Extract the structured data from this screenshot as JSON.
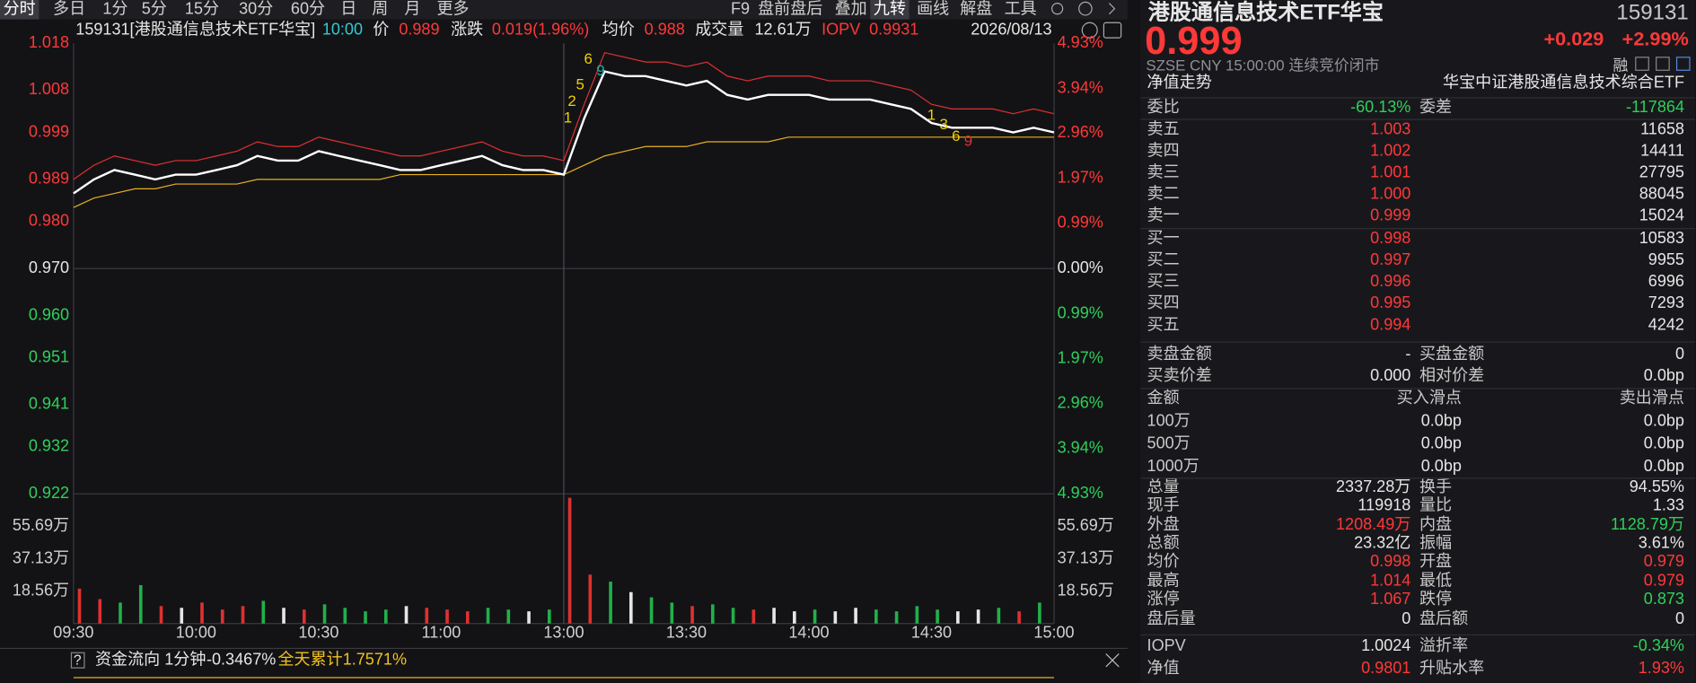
{
  "toolbar": {
    "left": [
      "分时",
      "多日",
      "1分",
      "5分",
      "15分",
      "30分",
      "60分",
      "日",
      "周",
      "月",
      "更多"
    ],
    "right": [
      "F9",
      "盘前盘后",
      "叠加",
      "九转",
      "画线",
      "解盘",
      "工具"
    ]
  },
  "header": {
    "name": "159131[港股通信息技术ETF华宝]",
    "time": "10:00",
    "price_label": "价",
    "price": "0.989",
    "change_label": "涨跌",
    "change": "0.019(1.96%)",
    "avg_label": "均价",
    "avg": "0.988",
    "vol_label": "成交量",
    "vol": "12.61万",
    "iopv_label": "IOPV",
    "iopv": "0.9931",
    "date": "2026/08/13"
  },
  "chart_data": [
    {
      "type": "line",
      "x": [
        0,
        5,
        10,
        15,
        20,
        25,
        30,
        35,
        40,
        45,
        50,
        55,
        60,
        65,
        70,
        75,
        80,
        85,
        90,
        95,
        100,
        105,
        110,
        115,
        120,
        125,
        130,
        135,
        140,
        145,
        150,
        155,
        160,
        165,
        170,
        175,
        180,
        185,
        190,
        195,
        200,
        205,
        210,
        215,
        220,
        225,
        230,
        235,
        240
      ],
      "xlim": [
        0,
        240
      ],
      "xticks": [
        {
          "value": 0,
          "label": "09:30"
        },
        {
          "value": 30,
          "label": "10:00"
        },
        {
          "value": 60,
          "label": "10:30"
        },
        {
          "value": 90,
          "label": "11:00"
        },
        {
          "value": 120,
          "label": "13:00"
        },
        {
          "value": 150,
          "label": "13:30"
        },
        {
          "value": 180,
          "label": "14:00"
        },
        {
          "value": 210,
          "label": "14:30"
        },
        {
          "value": 240,
          "label": "15:00"
        }
      ],
      "ylim": [
        0.922,
        1.018
      ],
      "yticks": [
        {
          "value": 1.018,
          "label": "1.018"
        },
        {
          "value": 1.008,
          "label": "1.008"
        },
        {
          "value": 0.999,
          "label": "0.999"
        },
        {
          "value": 0.989,
          "label": "0.989"
        },
        {
          "value": 0.98,
          "label": "0.980"
        },
        {
          "value": 0.97,
          "label": "0.970"
        },
        {
          "value": 0.96,
          "label": "0.960"
        },
        {
          "value": 0.951,
          "label": "0.951"
        },
        {
          "value": 0.941,
          "label": "0.941"
        },
        {
          "value": 0.932,
          "label": "0.932"
        },
        {
          "value": 0.922,
          "label": "0.922"
        }
      ],
      "y2lim": [
        -4.93,
        4.93
      ],
      "y2ticks": [
        {
          "value": 4.93,
          "label": "4.93%"
        },
        {
          "value": 3.94,
          "label": "3.94%"
        },
        {
          "value": 2.96,
          "label": "2.96%"
        },
        {
          "value": 1.97,
          "label": "1.97%"
        },
        {
          "value": 0.99,
          "label": "0.99%"
        },
        {
          "value": 0,
          "label": "0.00%"
        },
        {
          "value": -0.99,
          "label": "0.99%"
        },
        {
          "value": -1.97,
          "label": "1.97%"
        },
        {
          "value": -2.96,
          "label": "2.96%"
        },
        {
          "value": -3.94,
          "label": "3.94%"
        },
        {
          "value": -4.93,
          "label": "4.93%"
        }
      ],
      "series": [
        {
          "color": "#e03030",
          "values": [
            0.989,
            0.992,
            0.994,
            0.993,
            0.992,
            0.993,
            0.993,
            0.994,
            0.995,
            0.997,
            0.996,
            0.996,
            0.998,
            0.997,
            0.996,
            0.995,
            0.994,
            0.994,
            0.995,
            0.996,
            0.997,
            0.995,
            0.994,
            0.994,
            0.993,
            1.005,
            1.016,
            1.015,
            1.014,
            1.014,
            1.013,
            1.014,
            1.011,
            1.01,
            1.011,
            1.011,
            1.011,
            1.01,
            1.01,
            1.01,
            1.009,
            1.008,
            1.005,
            1.004,
            1.004,
            1.004,
            1.003,
            1.004,
            1.003
          ]
        },
        {
          "color": "#e8b020",
          "values": [
            0.983,
            0.985,
            0.986,
            0.987,
            0.987,
            0.988,
            0.988,
            0.988,
            0.988,
            0.989,
            0.989,
            0.989,
            0.989,
            0.989,
            0.989,
            0.989,
            0.99,
            0.99,
            0.99,
            0.99,
            0.99,
            0.99,
            0.99,
            0.99,
            0.99,
            0.992,
            0.994,
            0.995,
            0.996,
            0.996,
            0.996,
            0.997,
            0.997,
            0.997,
            0.997,
            0.998,
            0.998,
            0.998,
            0.998,
            0.998,
            0.998,
            0.998,
            0.998,
            0.998,
            0.998,
            0.998,
            0.998,
            0.998,
            0.998
          ]
        },
        {
          "color": "#ffffff",
          "values": [
            0.986,
            0.989,
            0.991,
            0.99,
            0.989,
            0.99,
            0.99,
            0.991,
            0.992,
            0.994,
            0.993,
            0.993,
            0.995,
            0.994,
            0.993,
            0.992,
            0.991,
            0.991,
            0.992,
            0.993,
            0.994,
            0.992,
            0.991,
            0.991,
            0.99,
            1.002,
            1.012,
            1.011,
            1.011,
            1.01,
            1.009,
            1.01,
            1.007,
            1.006,
            1.007,
            1.007,
            1.007,
            1.006,
            1.006,
            1.006,
            1.005,
            1.004,
            1.001,
            1.0,
            1.0,
            1.0,
            0.999,
            1.0,
            0.999
          ]
        }
      ],
      "annotations": [
        {
          "text": "1",
          "x": 121,
          "y": 1.002,
          "color": "#f0d000"
        },
        {
          "text": "2",
          "x": 122,
          "y": 1.0055,
          "color": "#f0d000"
        },
        {
          "text": "5",
          "x": 124,
          "y": 1.009,
          "color": "#f0d000"
        },
        {
          "text": "6",
          "x": 126,
          "y": 1.0145,
          "color": "#f0d000"
        },
        {
          "text": "9",
          "x": 129,
          "y": 1.012,
          "color": "#20b0a0"
        },
        {
          "text": "1",
          "x": 210,
          "y": 1.0025,
          "color": "#f0d000"
        },
        {
          "text": "3",
          "x": 213,
          "y": 1.0005,
          "color": "#f0d000"
        },
        {
          "text": "6",
          "x": 216,
          "y": 0.998,
          "color": "#f0d000"
        },
        {
          "text": "9",
          "x": 219,
          "y": 0.997,
          "color": "#e03030"
        }
      ]
    },
    {
      "type": "bar",
      "x": [
        0,
        5,
        10,
        15,
        20,
        25,
        30,
        35,
        40,
        45,
        50,
        55,
        60,
        65,
        70,
        75,
        80,
        85,
        90,
        95,
        100,
        105,
        110,
        115,
        120,
        125,
        130,
        135,
        140,
        145,
        150,
        155,
        160,
        165,
        170,
        175,
        180,
        185,
        190,
        195,
        200,
        205,
        210,
        215,
        220,
        225,
        230,
        235
      ],
      "values": [
        20,
        14,
        12,
        22,
        10,
        9,
        12,
        8,
        10,
        13,
        9,
        8,
        11,
        9,
        7,
        8,
        10,
        9,
        8,
        7,
        9,
        8,
        7,
        8,
        72,
        28,
        24,
        18,
        15,
        12,
        10,
        11,
        9,
        8,
        9,
        7,
        8,
        7,
        9,
        8,
        7,
        10,
        8,
        7,
        8,
        9,
        7,
        12
      ],
      "ylim": [
        0,
        74.24
      ],
      "yticks": [
        {
          "value": 18.56,
          "label": "18.56万"
        },
        {
          "value": 37.13,
          "label": "37.13万"
        },
        {
          "value": 55.69,
          "label": "55.69万"
        }
      ]
    }
  ],
  "panel": {
    "title": "港股通信息技术ETF华宝",
    "code": "159131",
    "price": "0.999",
    "change": "+0.029",
    "change_pct": "+2.99%",
    "status": "SZSE  CNY  15:00:00  连续竞价闭市",
    "rong": "融",
    "nav_label": "净值走势",
    "index_name": "华宝中证港股通信息技术综合ETF",
    "rows": [
      [
        "委比",
        "-60.13%",
        "委差",
        "-117864"
      ],
      [
        "卖五",
        "1.003",
        "11658"
      ],
      [
        "卖四",
        "1.002",
        "14411"
      ],
      [
        "卖三",
        "1.001",
        "27795"
      ],
      [
        "卖二",
        "1.000",
        "88045"
      ],
      [
        "卖一",
        "0.999",
        "15024"
      ],
      [
        "买一",
        "0.998",
        "10583"
      ],
      [
        "买二",
        "0.997",
        "9955"
      ],
      [
        "买三",
        "0.996",
        "6996"
      ],
      [
        "买四",
        "0.995",
        "7293"
      ],
      [
        "买五",
        "0.994",
        "4242"
      ],
      [
        "卖盘金额",
        "-",
        "买盘金额",
        "0"
      ],
      [
        "买卖价差",
        "0.000",
        "相对价差",
        "0.0bp"
      ],
      [
        "金额",
        "买入滑点",
        "卖出滑点"
      ],
      [
        "100万",
        "0.0bp",
        "0.0bp"
      ],
      [
        "500万",
        "0.0bp",
        "0.0bp"
      ],
      [
        "1000万",
        "0.0bp",
        "0.0bp"
      ],
      [
        "总量",
        "2337.28万",
        "换手",
        "94.55%"
      ],
      [
        "现手",
        "119918",
        "量比",
        "1.33"
      ],
      [
        "外盘",
        "1208.49万",
        "内盘",
        "1128.79万"
      ],
      [
        "总额",
        "23.32亿",
        "振幅",
        "3.61%"
      ],
      [
        "均价",
        "0.998",
        "开盘",
        "0.979"
      ],
      [
        "最高",
        "1.014",
        "最低",
        "0.979"
      ],
      [
        "涨停",
        "1.067",
        "跌停",
        "0.873"
      ],
      [
        "盘后量",
        "0",
        "盘后额",
        "0"
      ],
      [
        "IOPV",
        "1.0024",
        "溢折率",
        "-0.34%"
      ],
      [
        "净值",
        "0.9801",
        "升贴水率",
        "1.93%"
      ]
    ]
  },
  "flow": {
    "help": "?",
    "label": "资金流向 1分钟",
    "value": "-0.3467%",
    "total_label": "全天累计",
    "total": "1.7571%"
  }
}
